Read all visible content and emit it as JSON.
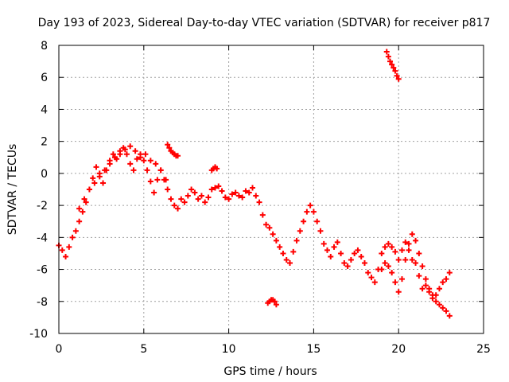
{
  "chart_data": {
    "type": "scatter",
    "title": "Day 193 of 2023, Sidereal Day-to-day VTEC variation (SDTVAR) for receiver p817",
    "xlabel": "GPS time / hours",
    "ylabel": "SDTVAR / TECUs",
    "xlim": [
      0,
      25
    ],
    "ylim": [
      -10,
      8
    ],
    "xticks": [
      0,
      5,
      10,
      15,
      20,
      25
    ],
    "yticks": [
      -10,
      -8,
      -6,
      -4,
      -2,
      0,
      2,
      4,
      6,
      8
    ],
    "grid": true,
    "marker": "+",
    "color": "#ff0000",
    "series": [
      {
        "name": "main",
        "x": [
          0.0,
          0.2,
          0.4,
          0.6,
          0.8,
          1.0,
          1.2,
          1.4,
          1.6,
          1.8,
          2.0,
          2.2,
          2.4,
          2.6,
          2.8,
          3.0,
          3.2,
          3.4,
          3.6,
          3.8,
          4.0,
          4.2,
          4.4,
          4.6,
          4.8,
          5.0,
          5.2,
          5.4,
          5.6,
          5.8,
          6.0,
          6.2,
          6.4,
          6.6,
          6.8,
          7.0,
          7.2,
          7.4,
          7.6,
          7.8,
          8.0,
          8.2,
          8.4,
          8.6,
          8.8,
          9.0,
          9.2,
          9.4,
          9.6,
          9.8,
          10.0,
          10.2,
          10.4,
          10.6,
          10.8,
          11.0,
          11.2,
          11.4,
          11.6,
          11.8,
          12.0,
          12.2,
          12.4,
          12.6,
          12.8,
          13.0,
          13.2,
          13.4,
          13.6,
          13.8,
          14.0,
          14.2,
          14.4,
          14.6,
          14.8,
          15.0,
          15.2,
          15.4,
          15.6,
          15.8,
          16.0,
          16.2,
          16.4,
          16.6,
          16.8,
          17.0,
          17.2,
          17.4,
          17.6,
          17.8,
          18.0,
          18.2,
          18.4,
          18.6,
          18.8,
          19.0,
          19.2,
          19.4,
          19.6,
          19.8,
          20.0,
          20.2,
          20.4,
          20.6,
          20.8,
          21.0,
          21.2,
          21.4,
          21.6,
          21.8,
          22.0,
          22.2,
          22.4,
          22.6,
          22.8,
          23.0
        ],
        "y": [
          -4.5,
          -4.8,
          -5.2,
          -4.6,
          -4.0,
          -3.6,
          -3.0,
          -2.4,
          -1.8,
          -1.0,
          -0.3,
          0.4,
          0.0,
          -0.6,
          0.2,
          0.8,
          1.2,
          0.9,
          1.4,
          1.6,
          1.2,
          0.6,
          0.2,
          0.9,
          1.2,
          0.8,
          0.2,
          -0.5,
          -1.2,
          -0.4,
          0.2,
          -0.4,
          -1.0,
          -1.6,
          -2.0,
          -2.2,
          -1.6,
          -1.8,
          -1.4,
          -1.0,
          -1.2,
          -1.6,
          -1.4,
          -1.8,
          -1.5,
          -1.0,
          -0.9,
          -0.8,
          -1.1,
          -1.5,
          -1.6,
          -1.3,
          -1.2,
          -1.4,
          -1.5,
          -1.1,
          -1.2,
          -0.9,
          -1.4,
          -1.8,
          -2.6,
          -3.2,
          -3.4,
          -3.8,
          -4.2,
          -4.6,
          -5.0,
          -5.4,
          -5.6,
          -4.9,
          -4.2,
          -3.6,
          -3.0,
          -2.4,
          -2.0,
          -2.4,
          -3.0,
          -3.6,
          -4.4,
          -4.8,
          -5.2,
          -4.6,
          -4.3,
          -5.0,
          -5.6,
          -5.8,
          -5.4,
          -5.0,
          -4.8,
          -5.2,
          -5.6,
          -6.2,
          -6.5,
          -6.8,
          -6.0,
          -5.0,
          -4.6,
          -4.4,
          -4.6,
          -4.9,
          -5.4,
          -4.8,
          -4.3,
          -4.8,
          -5.4,
          -5.6,
          -6.4,
          -7.2,
          -7.0,
          -7.4,
          -7.8,
          -7.6,
          -7.2,
          -6.8,
          -6.6,
          -6.2
        ]
      },
      {
        "name": "upper-branch",
        "x": [
          1.2,
          1.5,
          1.8,
          2.1,
          2.4,
          2.7,
          3.0,
          3.3,
          3.6,
          3.9,
          4.2,
          4.5,
          4.8,
          5.1,
          5.4,
          5.7,
          6.0,
          6.3
        ],
        "y": [
          -2.2,
          -1.6,
          -1.0,
          -0.6,
          -0.2,
          0.2,
          0.6,
          1.0,
          1.2,
          1.5,
          1.7,
          1.4,
          1.0,
          1.2,
          0.8,
          0.6,
          0.2,
          -0.4
        ]
      },
      {
        "name": "tail-branch",
        "x": [
          19.0,
          19.2,
          19.4,
          19.6,
          19.8,
          20.0,
          20.2,
          20.4,
          20.6,
          20.8,
          21.0,
          21.2,
          21.4,
          21.6,
          21.8,
          22.0,
          22.2,
          22.4,
          22.6,
          22.8,
          23.0
        ],
        "y": [
          -6.0,
          -5.6,
          -5.8,
          -6.2,
          -6.8,
          -7.4,
          -6.6,
          -5.4,
          -4.4,
          -3.8,
          -4.2,
          -5.0,
          -5.8,
          -6.6,
          -7.2,
          -7.6,
          -8.0,
          -8.2,
          -8.4,
          -8.6,
          -8.9
        ]
      },
      {
        "name": "spike",
        "x": [
          19.3,
          19.4,
          19.5,
          19.6,
          19.7,
          19.8,
          19.9,
          20.0
        ],
        "y": [
          7.6,
          7.3,
          7.0,
          6.8,
          6.6,
          6.4,
          6.1,
          5.9
        ]
      },
      {
        "name": "isolated-1",
        "x": [
          12.3,
          12.4,
          12.5,
          12.6,
          12.7,
          12.8
        ],
        "y": [
          -8.1,
          -8.0,
          -7.9,
          -7.9,
          -8.0,
          -8.2
        ]
      },
      {
        "name": "isolated-2",
        "x": [
          6.4,
          6.5,
          6.6,
          6.7,
          6.8,
          6.9,
          7.0
        ],
        "y": [
          1.8,
          1.6,
          1.4,
          1.3,
          1.2,
          1.1,
          1.1
        ]
      },
      {
        "name": "isolated-3",
        "x": [
          9.0,
          9.1,
          9.2,
          9.3
        ],
        "y": [
          0.2,
          0.3,
          0.4,
          0.3
        ]
      }
    ]
  }
}
